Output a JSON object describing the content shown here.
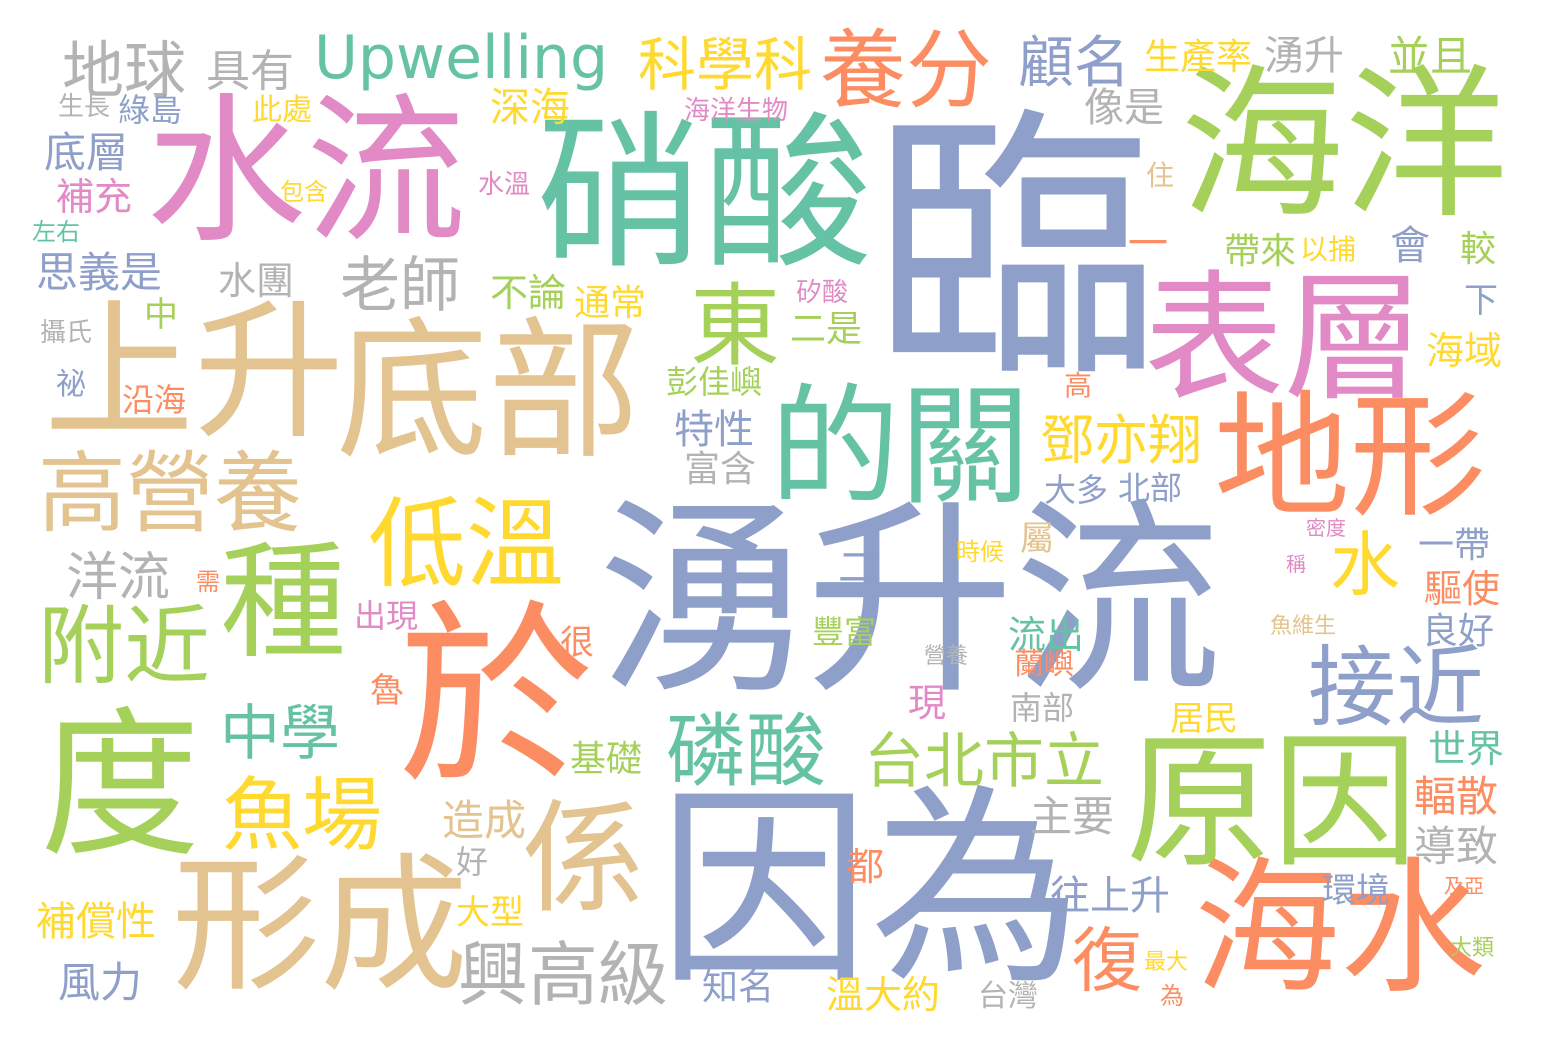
{
  "word_cloud": {
    "palette": {
      "blue": "#8e9fc9",
      "green": "#a5d15a",
      "teal": "#66c2a5",
      "tan": "#e3c38f",
      "pink": "#e18ac6",
      "orange": "#fc8d62",
      "yellow": "#ffd92f",
      "gray": "#b3b3b3"
    },
    "words": [
      {
        "text": "臨",
        "color": "blue"
      },
      {
        "text": "湧升流",
        "color": "blue"
      },
      {
        "text": "因為",
        "color": "blue"
      },
      {
        "text": "水流",
        "color": "pink"
      },
      {
        "text": "硝酸",
        "color": "teal"
      },
      {
        "text": "海洋",
        "color": "green"
      },
      {
        "text": "於",
        "color": "orange"
      },
      {
        "text": "上升",
        "color": "tan"
      },
      {
        "text": "底部",
        "color": "tan"
      },
      {
        "text": "度",
        "color": "green"
      },
      {
        "text": "形成",
        "color": "tan"
      },
      {
        "text": "原因",
        "color": "green"
      },
      {
        "text": "海水",
        "color": "orange"
      },
      {
        "text": "表層",
        "color": "pink"
      },
      {
        "text": "地形",
        "color": "orange"
      },
      {
        "text": "的關",
        "color": "teal"
      },
      {
        "text": "係",
        "color": "tan"
      },
      {
        "text": "種",
        "color": "green"
      },
      {
        "text": "低溫",
        "color": "yellow"
      },
      {
        "text": "高營養",
        "color": "tan"
      },
      {
        "text": "Upwelling",
        "color": "teal"
      },
      {
        "text": "養分",
        "color": "orange"
      },
      {
        "text": "地球",
        "color": "gray"
      },
      {
        "text": "附近",
        "color": "green"
      },
      {
        "text": "東",
        "color": "green"
      },
      {
        "text": "接近",
        "color": "blue"
      },
      {
        "text": "磷酸",
        "color": "teal"
      },
      {
        "text": "魚場",
        "color": "yellow"
      },
      {
        "text": "中學",
        "color": "teal"
      },
      {
        "text": "台北市立",
        "color": "green"
      },
      {
        "text": "興高級",
        "color": "gray"
      },
      {
        "text": "科學科",
        "color": "yellow"
      },
      {
        "text": "老師",
        "color": "gray"
      },
      {
        "text": "鄧亦翔",
        "color": "yellow"
      },
      {
        "text": "水",
        "color": "yellow"
      },
      {
        "text": "復",
        "color": "orange"
      },
      {
        "text": "顧名",
        "color": "blue"
      },
      {
        "text": "洋流",
        "color": "gray"
      },
      {
        "text": "具有",
        "color": "gray"
      },
      {
        "text": "生產率",
        "color": "yellow"
      },
      {
        "text": "湧升",
        "color": "gray"
      },
      {
        "text": "並且",
        "color": "green"
      },
      {
        "text": "像是",
        "color": "gray"
      },
      {
        "text": "深海",
        "color": "yellow"
      },
      {
        "text": "此處",
        "color": "yellow"
      },
      {
        "text": "生長",
        "color": "gray"
      },
      {
        "text": "綠島",
        "color": "blue"
      },
      {
        "text": "海洋生物",
        "color": "pink"
      },
      {
        "text": "底層",
        "color": "blue"
      },
      {
        "text": "補充",
        "color": "pink"
      },
      {
        "text": "包含",
        "color": "yellow"
      },
      {
        "text": "水溫",
        "color": "pink"
      },
      {
        "text": "住",
        "color": "tan"
      },
      {
        "text": "左右",
        "color": "teal"
      },
      {
        "text": "思義是",
        "color": "blue"
      },
      {
        "text": "水團",
        "color": "gray"
      },
      {
        "text": "不論",
        "color": "green"
      },
      {
        "text": "通常",
        "color": "yellow"
      },
      {
        "text": "一",
        "color": "orange"
      },
      {
        "text": "帶來",
        "color": "green"
      },
      {
        "text": "以捕",
        "color": "yellow"
      },
      {
        "text": "會",
        "color": "blue"
      },
      {
        "text": "較",
        "color": "green"
      },
      {
        "text": "中",
        "color": "green"
      },
      {
        "text": "矽酸",
        "color": "pink"
      },
      {
        "text": "二是",
        "color": "green"
      },
      {
        "text": "下",
        "color": "blue"
      },
      {
        "text": "攝氏",
        "color": "gray"
      },
      {
        "text": "海域",
        "color": "yellow"
      },
      {
        "text": "祕",
        "color": "blue"
      },
      {
        "text": "沿海",
        "color": "orange"
      },
      {
        "text": "彭佳嶼",
        "color": "green"
      },
      {
        "text": "高",
        "color": "orange"
      },
      {
        "text": "大多",
        "color": "blue"
      },
      {
        "text": "北部",
        "color": "blue"
      },
      {
        "text": "特性",
        "color": "blue"
      },
      {
        "text": "富含",
        "color": "gray"
      },
      {
        "text": "屬",
        "color": "tan"
      },
      {
        "text": "密度",
        "color": "pink"
      },
      {
        "text": "二",
        "color": "blue"
      },
      {
        "text": "時候",
        "color": "yellow"
      },
      {
        "text": "一帶",
        "color": "blue"
      },
      {
        "text": "需",
        "color": "orange"
      },
      {
        "text": "稱",
        "color": "pink"
      },
      {
        "text": "驅使",
        "color": "orange"
      },
      {
        "text": "出現",
        "color": "pink"
      },
      {
        "text": "流出",
        "color": "teal"
      },
      {
        "text": "魚維生",
        "color": "tan"
      },
      {
        "text": "良好",
        "color": "blue"
      },
      {
        "text": "很",
        "color": "orange"
      },
      {
        "text": "豐富",
        "color": "green"
      },
      {
        "text": "營養",
        "color": "gray"
      },
      {
        "text": "蘭嶼",
        "color": "orange"
      },
      {
        "text": "魯",
        "color": "orange"
      },
      {
        "text": "現",
        "color": "pink"
      },
      {
        "text": "南部",
        "color": "gray"
      },
      {
        "text": "居民",
        "color": "yellow"
      },
      {
        "text": "世界",
        "color": "teal"
      },
      {
        "text": "基礎",
        "color": "green"
      },
      {
        "text": "造成",
        "color": "tan"
      },
      {
        "text": "主要",
        "color": "gray"
      },
      {
        "text": "輻散",
        "color": "orange"
      },
      {
        "text": "好",
        "color": "gray"
      },
      {
        "text": "導致",
        "color": "gray"
      },
      {
        "text": "都",
        "color": "orange"
      },
      {
        "text": "往上升",
        "color": "blue"
      },
      {
        "text": "環境",
        "color": "blue"
      },
      {
        "text": "及亞",
        "color": "orange"
      },
      {
        "text": "補償性",
        "color": "yellow"
      },
      {
        "text": "大型",
        "color": "yellow"
      },
      {
        "text": "風力",
        "color": "blue"
      },
      {
        "text": "知名",
        "color": "blue"
      },
      {
        "text": "溫大約",
        "color": "yellow"
      },
      {
        "text": "台灣",
        "color": "gray"
      },
      {
        "text": "最大",
        "color": "yellow"
      },
      {
        "text": "為",
        "color": "orange"
      },
      {
        "text": "大類",
        "color": "green"
      }
    ]
  }
}
